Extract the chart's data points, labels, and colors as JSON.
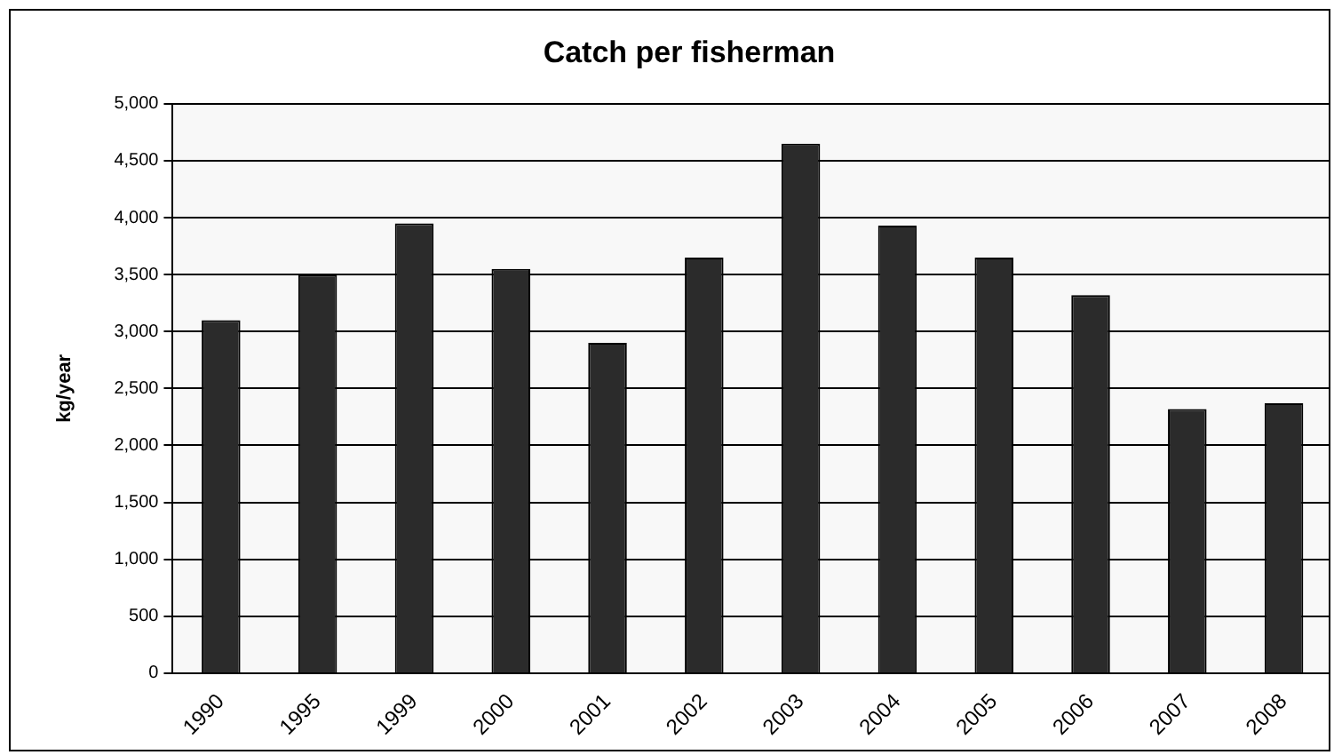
{
  "chart_data": {
    "type": "bar",
    "title": "Catch per fisherman",
    "ylabel": "kg/year",
    "categories": [
      "1990",
      "1995",
      "1999",
      "2000",
      "2001",
      "2002",
      "2003",
      "2004",
      "2005",
      "2006",
      "2007",
      "2008"
    ],
    "values": [
      3100,
      3500,
      3950,
      3550,
      2900,
      3650,
      4650,
      3930,
      3650,
      3320,
      2320,
      2370
    ],
    "color": "#2b2b2b",
    "ylim": [
      0,
      5000
    ],
    "yticks": [
      0,
      500,
      {
        "value": 1000,
        "label": "1,000"
      },
      {
        "value": 1500,
        "label": "1,500"
      },
      {
        "value": 2000,
        "label": "2,000"
      },
      {
        "value": 2500,
        "label": "2,500"
      },
      {
        "value": 3000,
        "label": "3,000"
      },
      {
        "value": 3500,
        "label": "3,500"
      },
      {
        "value": 4000,
        "label": "4,000"
      },
      {
        "value": 4500,
        "label": "4,500"
      },
      {
        "value": 5000,
        "label": "5,000"
      }
    ],
    "grid": "y",
    "legend": false
  }
}
